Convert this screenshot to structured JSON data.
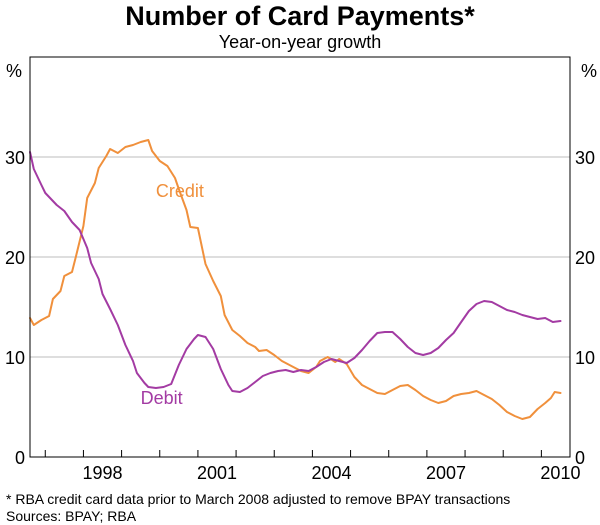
{
  "chart_data": {
    "type": "line",
    "title": "Number of Card Payments*",
    "subtitle": "Year-on-year growth",
    "ylabel_left": "%",
    "ylabel_right": "%",
    "xlim": [
      1996.6,
      2010.75
    ],
    "ylim": [
      0,
      40
    ],
    "yticks": [
      0,
      10,
      20,
      30
    ],
    "xticks": [
      {
        "value": 1998,
        "label": "1998"
      },
      {
        "value": 2001,
        "label": "2001"
      },
      {
        "value": 2004,
        "label": "2004"
      },
      {
        "value": 2007,
        "label": "2007"
      },
      {
        "value": 2010,
        "label": "2010"
      }
    ],
    "grid": true,
    "series": [
      {
        "name": "Credit",
        "color": "#f0903c",
        "label_at": [
          1999.9,
          26.0
        ],
        "points": [
          [
            1996.6,
            13.9
          ],
          [
            1996.7,
            13.2
          ],
          [
            1996.9,
            13.7
          ],
          [
            1997.1,
            14.1
          ],
          [
            1997.2,
            15.8
          ],
          [
            1997.4,
            16.6
          ],
          [
            1997.5,
            18.1
          ],
          [
            1997.7,
            18.5
          ],
          [
            1997.8,
            20.0
          ],
          [
            1998.0,
            23.1
          ],
          [
            1998.1,
            25.9
          ],
          [
            1998.3,
            27.4
          ],
          [
            1998.4,
            28.9
          ],
          [
            1998.6,
            30.1
          ],
          [
            1998.7,
            30.8
          ],
          [
            1998.9,
            30.4
          ],
          [
            1999.1,
            31.0
          ],
          [
            1999.3,
            31.2
          ],
          [
            1999.5,
            31.5
          ],
          [
            1999.7,
            31.7
          ],
          [
            1999.8,
            30.6
          ],
          [
            2000.0,
            29.6
          ],
          [
            2000.2,
            29.1
          ],
          [
            2000.4,
            27.9
          ],
          [
            2000.5,
            26.8
          ],
          [
            2000.7,
            24.7
          ],
          [
            2000.8,
            23.0
          ],
          [
            2001.0,
            22.9
          ],
          [
            2001.2,
            19.3
          ],
          [
            2001.4,
            17.6
          ],
          [
            2001.6,
            16.1
          ],
          [
            2001.7,
            14.2
          ],
          [
            2001.9,
            12.7
          ],
          [
            2002.1,
            12.1
          ],
          [
            2002.3,
            11.4
          ],
          [
            2002.5,
            11.0
          ],
          [
            2002.6,
            10.6
          ],
          [
            2002.8,
            10.7
          ],
          [
            2003.0,
            10.2
          ],
          [
            2003.2,
            9.6
          ],
          [
            2003.4,
            9.2
          ],
          [
            2003.5,
            9.0
          ],
          [
            2003.7,
            8.6
          ],
          [
            2003.9,
            8.4
          ],
          [
            2004.1,
            9.0
          ],
          [
            2004.2,
            9.6
          ],
          [
            2004.4,
            10.0
          ],
          [
            2004.6,
            9.5
          ],
          [
            2004.7,
            9.8
          ],
          [
            2004.9,
            9.3
          ],
          [
            2005.1,
            8.0
          ],
          [
            2005.3,
            7.2
          ],
          [
            2005.5,
            6.8
          ],
          [
            2005.7,
            6.4
          ],
          [
            2005.9,
            6.3
          ],
          [
            2006.1,
            6.7
          ],
          [
            2006.3,
            7.1
          ],
          [
            2006.5,
            7.2
          ],
          [
            2006.7,
            6.7
          ],
          [
            2006.9,
            6.1
          ],
          [
            2007.1,
            5.7
          ],
          [
            2007.3,
            5.4
          ],
          [
            2007.5,
            5.6
          ],
          [
            2007.7,
            6.1
          ],
          [
            2007.9,
            6.3
          ],
          [
            2008.1,
            6.4
          ],
          [
            2008.3,
            6.6
          ],
          [
            2008.5,
            6.2
          ],
          [
            2008.7,
            5.8
          ],
          [
            2008.9,
            5.2
          ],
          [
            2009.1,
            4.5
          ],
          [
            2009.3,
            4.1
          ],
          [
            2009.5,
            3.8
          ],
          [
            2009.7,
            4.0
          ],
          [
            2009.9,
            4.8
          ],
          [
            2010.1,
            5.4
          ],
          [
            2010.25,
            5.9
          ],
          [
            2010.35,
            6.5
          ],
          [
            2010.5,
            6.4
          ]
        ]
      },
      {
        "name": "Debit",
        "color": "#a33ba3",
        "label_at": [
          1999.5,
          5.3
        ],
        "points": [
          [
            1996.6,
            30.5
          ],
          [
            1996.7,
            28.8
          ],
          [
            1996.9,
            27.2
          ],
          [
            1997.0,
            26.4
          ],
          [
            1997.2,
            25.6
          ],
          [
            1997.3,
            25.2
          ],
          [
            1997.5,
            24.6
          ],
          [
            1997.7,
            23.5
          ],
          [
            1997.9,
            22.7
          ],
          [
            1998.1,
            20.9
          ],
          [
            1998.2,
            19.4
          ],
          [
            1998.4,
            17.8
          ],
          [
            1998.5,
            16.3
          ],
          [
            1998.7,
            14.8
          ],
          [
            1998.9,
            13.2
          ],
          [
            1999.0,
            12.2
          ],
          [
            1999.1,
            11.2
          ],
          [
            1999.3,
            9.6
          ],
          [
            1999.4,
            8.4
          ],
          [
            1999.6,
            7.4
          ],
          [
            1999.7,
            7.0
          ],
          [
            1999.9,
            6.9
          ],
          [
            2000.1,
            7.0
          ],
          [
            2000.3,
            7.3
          ],
          [
            2000.5,
            9.2
          ],
          [
            2000.7,
            10.8
          ],
          [
            2000.9,
            11.8
          ],
          [
            2001.0,
            12.2
          ],
          [
            2001.2,
            12.0
          ],
          [
            2001.4,
            10.8
          ],
          [
            2001.6,
            8.8
          ],
          [
            2001.8,
            7.2
          ],
          [
            2001.9,
            6.6
          ],
          [
            2002.1,
            6.5
          ],
          [
            2002.3,
            6.9
          ],
          [
            2002.5,
            7.5
          ],
          [
            2002.7,
            8.1
          ],
          [
            2002.9,
            8.4
          ],
          [
            2003.1,
            8.6
          ],
          [
            2003.3,
            8.7
          ],
          [
            2003.5,
            8.5
          ],
          [
            2003.7,
            8.7
          ],
          [
            2003.9,
            8.6
          ],
          [
            2004.1,
            9.0
          ],
          [
            2004.3,
            9.5
          ],
          [
            2004.5,
            9.8
          ],
          [
            2004.7,
            9.6
          ],
          [
            2004.9,
            9.4
          ],
          [
            2005.1,
            9.9
          ],
          [
            2005.3,
            10.7
          ],
          [
            2005.5,
            11.6
          ],
          [
            2005.7,
            12.4
          ],
          [
            2005.9,
            12.5
          ],
          [
            2006.1,
            12.5
          ],
          [
            2006.3,
            11.8
          ],
          [
            2006.5,
            11.0
          ],
          [
            2006.7,
            10.4
          ],
          [
            2006.9,
            10.2
          ],
          [
            2007.1,
            10.4
          ],
          [
            2007.3,
            10.9
          ],
          [
            2007.5,
            11.7
          ],
          [
            2007.7,
            12.4
          ],
          [
            2007.9,
            13.5
          ],
          [
            2008.1,
            14.6
          ],
          [
            2008.3,
            15.3
          ],
          [
            2008.5,
            15.6
          ],
          [
            2008.7,
            15.5
          ],
          [
            2008.9,
            15.1
          ],
          [
            2009.1,
            14.7
          ],
          [
            2009.3,
            14.5
          ],
          [
            2009.5,
            14.2
          ],
          [
            2009.7,
            14.0
          ],
          [
            2009.9,
            13.8
          ],
          [
            2010.1,
            13.9
          ],
          [
            2010.3,
            13.5
          ],
          [
            2010.5,
            13.6
          ]
        ]
      }
    ]
  },
  "footnote": "*   RBA credit card data prior to March 2008 adjusted to remove BPAY transactions",
  "sources": "Sources: BPAY; RBA"
}
